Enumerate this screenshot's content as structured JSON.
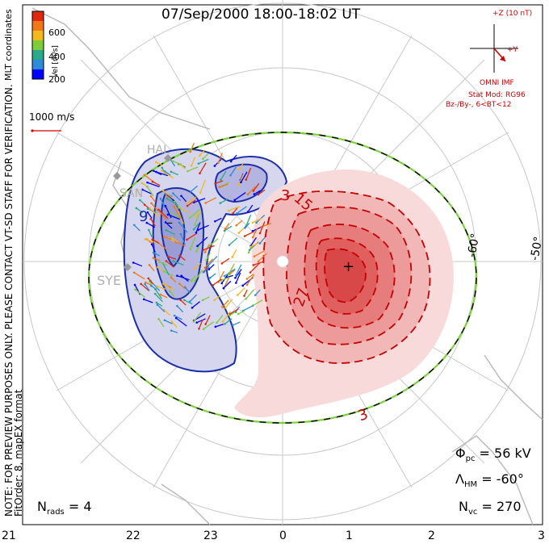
{
  "title": "07/Sep/2000 18:00-18:02 UT",
  "coords_label": "MLT coordinates",
  "note_line1": "NOTE: FOR PREVIEW PURPOSES ONLY. PLEASE CONTACT VT-SD STAFF FOR VERIFICATION.",
  "note_line2": "FitOrder: 8, mapEX format",
  "colorbar": {
    "label": "Vel [m/s]",
    "ticks": [
      "600",
      "400",
      "200"
    ],
    "colors": [
      "#0000ff",
      "#2e8bd8",
      "#2aa88a",
      "#7ecb3c",
      "#f2b81c",
      "#f07818",
      "#e02810"
    ]
  },
  "vector_scale_label": "1000 m/s",
  "imf": {
    "z_label": "+Z (10 nT)",
    "y_label": "+Y",
    "source": "OMNI IMF",
    "stat_mod": "Stat Mod: RG96",
    "condition": "Bz-/By-, 6<BT<12"
  },
  "latitude_labels": [
    "-60°",
    "-50°"
  ],
  "contour_labels": [
    "9",
    "–",
    "3",
    "15",
    "27",
    "3",
    "+"
  ],
  "station_labels": [
    "HAL",
    "SAN",
    "SYE"
  ],
  "stats": {
    "phi_pc": "Φ",
    "phi_pc_sub": "pc",
    "phi_pc_value": "= 56 kV",
    "lambda_hm": "Λ",
    "lambda_hm_sub": "HM",
    "lambda_hm_value": "= -60°",
    "n_vc": "N",
    "n_vc_sub": "vc",
    "n_vc_value": "= 270",
    "n_rads": "N",
    "n_rads_sub": "rads",
    "n_rads_value": "= 4"
  },
  "mlt_ticks": [
    "21",
    "22",
    "23",
    "0",
    "1",
    "2",
    "3"
  ]
}
